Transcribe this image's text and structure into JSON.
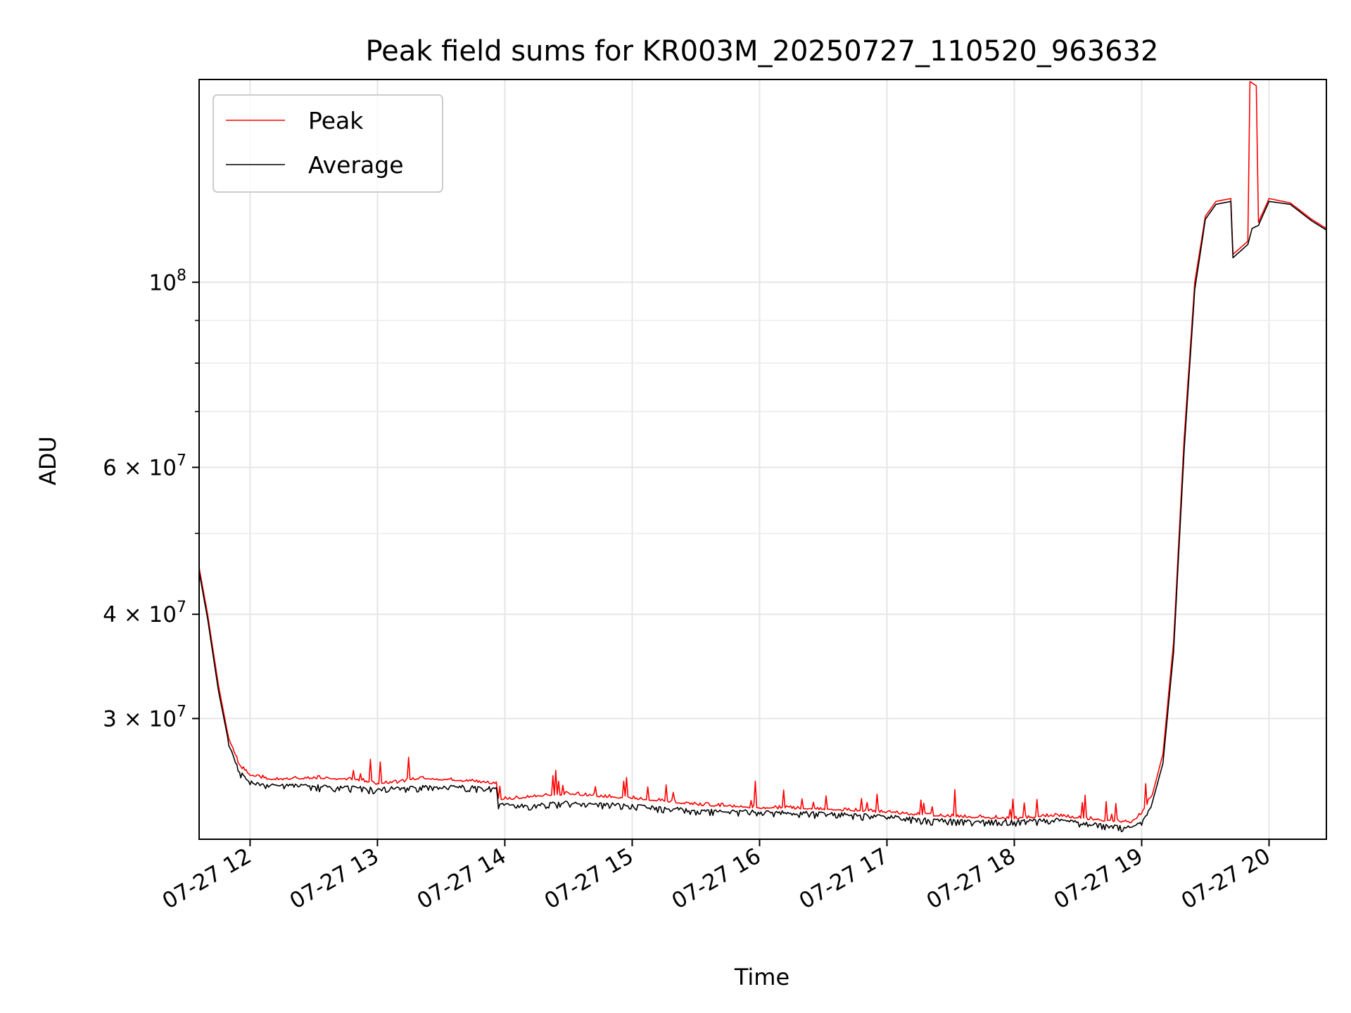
{
  "chart_data": {
    "type": "line",
    "title": "Peak field sums for KR003M_20250727_110520_963632",
    "xlabel": "Time",
    "ylabel": "ADU",
    "yscale": "log",
    "grid": true,
    "legend_position": "top-left",
    "xlim": [
      "2025-07-27 11:36",
      "2025-07-27 20:27"
    ],
    "ylim": [
      21500000,
      175000000
    ],
    "x_ticks": [
      {
        "value": "2025-07-27 12:00",
        "label": "07-27 12"
      },
      {
        "value": "2025-07-27 13:00",
        "label": "07-27 13"
      },
      {
        "value": "2025-07-27 14:00",
        "label": "07-27 14"
      },
      {
        "value": "2025-07-27 15:00",
        "label": "07-27 15"
      },
      {
        "value": "2025-07-27 16:00",
        "label": "07-27 16"
      },
      {
        "value": "2025-07-27 17:00",
        "label": "07-27 17"
      },
      {
        "value": "2025-07-27 18:00",
        "label": "07-27 18"
      },
      {
        "value": "2025-07-27 19:00",
        "label": "07-27 19"
      },
      {
        "value": "2025-07-27 20:00",
        "label": "07-27 20"
      }
    ],
    "y_ticks": [
      {
        "value": 30000000,
        "base": "3 × 10",
        "exp": "7"
      },
      {
        "value": 40000000,
        "base": "4 × 10",
        "exp": "7"
      },
      {
        "value": 60000000,
        "base": "6 × 10",
        "exp": "7"
      },
      {
        "value": 100000000,
        "base": "10",
        "exp": "8"
      }
    ],
    "y_minor_ticks": [
      50000000,
      70000000,
      80000000,
      90000000
    ],
    "series": [
      {
        "name": "Peak",
        "color": "#ff0000",
        "points": [
          [
            "2025-07-27 11:36",
            45500000
          ],
          [
            "2025-07-27 11:40",
            40000000
          ],
          [
            "2025-07-27 11:45",
            33000000
          ],
          [
            "2025-07-27 11:50",
            28300000
          ],
          [
            "2025-07-27 11:55",
            26300000
          ],
          [
            "2025-07-27 12:00",
            25600000
          ],
          [
            "2025-07-27 12:10",
            25300000
          ],
          [
            "2025-07-27 12:30",
            25400000
          ],
          [
            "2025-07-27 12:50",
            25300000
          ],
          [
            "2025-07-27 13:00",
            25000000
          ],
          [
            "2025-07-27 13:10",
            25100000
          ],
          [
            "2025-07-27 13:20",
            25400000
          ],
          [
            "2025-07-27 13:30",
            25300000
          ],
          [
            "2025-07-27 13:50",
            25100000
          ],
          [
            "2025-07-27 13:56",
            25000000
          ],
          [
            "2025-07-27 13:57",
            23900000
          ],
          [
            "2025-07-27 14:10",
            24100000
          ],
          [
            "2025-07-27 14:30",
            24300000
          ],
          [
            "2025-07-27 14:50",
            24100000
          ],
          [
            "2025-07-27 15:10",
            23900000
          ],
          [
            "2025-07-27 15:30",
            23600000
          ],
          [
            "2025-07-27 16:00",
            23400000
          ],
          [
            "2025-07-27 16:30",
            23300000
          ],
          [
            "2025-07-27 17:00",
            23100000
          ],
          [
            "2025-07-27 17:20",
            22900000
          ],
          [
            "2025-07-27 17:40",
            22800000
          ],
          [
            "2025-07-27 18:00",
            22700000
          ],
          [
            "2025-07-27 18:20",
            22900000
          ],
          [
            "2025-07-27 18:40",
            22600000
          ],
          [
            "2025-07-27 18:55",
            22500000
          ],
          [
            "2025-07-27 19:00",
            23000000
          ],
          [
            "2025-07-27 19:05",
            24300000
          ],
          [
            "2025-07-27 19:10",
            27200000
          ],
          [
            "2025-07-27 19:15",
            37000000
          ],
          [
            "2025-07-27 19:20",
            65000000
          ],
          [
            "2025-07-27 19:25",
            100000000
          ],
          [
            "2025-07-27 19:30",
            120000000
          ],
          [
            "2025-07-27 19:35",
            125000000
          ],
          [
            "2025-07-27 19:42",
            126000000
          ],
          [
            "2025-07-27 19:43",
            108000000
          ],
          [
            "2025-07-27 19:50",
            112000000
          ],
          [
            "2025-07-27 19:51",
            174000000
          ],
          [
            "2025-07-27 19:54",
            172000000
          ],
          [
            "2025-07-27 19:55",
            118000000
          ],
          [
            "2025-07-27 20:00",
            126000000
          ],
          [
            "2025-07-27 20:10",
            124500000
          ],
          [
            "2025-07-27 20:20",
            119000000
          ],
          [
            "2025-07-27 20:27",
            116000000
          ]
        ]
      },
      {
        "name": "Average",
        "color": "#000000",
        "points": [
          [
            "2025-07-27 11:36",
            45000000
          ],
          [
            "2025-07-27 11:40",
            39500000
          ],
          [
            "2025-07-27 11:45",
            32500000
          ],
          [
            "2025-07-27 11:50",
            28000000
          ],
          [
            "2025-07-27 11:55",
            26000000
          ],
          [
            "2025-07-27 12:00",
            25300000
          ],
          [
            "2025-07-27 12:10",
            25100000
          ],
          [
            "2025-07-27 12:30",
            25000000
          ],
          [
            "2025-07-27 12:50",
            24900000
          ],
          [
            "2025-07-27 13:00",
            24800000
          ],
          [
            "2025-07-27 13:10",
            24900000
          ],
          [
            "2025-07-27 13:30",
            25000000
          ],
          [
            "2025-07-27 13:56",
            24900000
          ],
          [
            "2025-07-27 13:57",
            23800000
          ],
          [
            "2025-07-27 14:10",
            23700000
          ],
          [
            "2025-07-27 14:30",
            23900000
          ],
          [
            "2025-07-27 14:50",
            23800000
          ],
          [
            "2025-07-27 15:10",
            23600000
          ],
          [
            "2025-07-27 15:30",
            23400000
          ],
          [
            "2025-07-27 16:00",
            23300000
          ],
          [
            "2025-07-27 16:30",
            23200000
          ],
          [
            "2025-07-27 17:00",
            23000000
          ],
          [
            "2025-07-27 17:20",
            22800000
          ],
          [
            "2025-07-27 17:40",
            22700000
          ],
          [
            "2025-07-27 18:00",
            22700000
          ],
          [
            "2025-07-27 18:20",
            22800000
          ],
          [
            "2025-07-27 18:40",
            22500000
          ],
          [
            "2025-07-27 18:55",
            22300000
          ],
          [
            "2025-07-27 19:00",
            22700000
          ],
          [
            "2025-07-27 19:05",
            23800000
          ],
          [
            "2025-07-27 19:10",
            26500000
          ],
          [
            "2025-07-27 19:15",
            36000000
          ],
          [
            "2025-07-27 19:20",
            63000000
          ],
          [
            "2025-07-27 19:25",
            98000000
          ],
          [
            "2025-07-27 19:30",
            119000000
          ],
          [
            "2025-07-27 19:35",
            124000000
          ],
          [
            "2025-07-27 19:42",
            125000000
          ],
          [
            "2025-07-27 19:43",
            107000000
          ],
          [
            "2025-07-27 19:50",
            111000000
          ],
          [
            "2025-07-27 19:52",
            116000000
          ],
          [
            "2025-07-27 19:55",
            117000000
          ],
          [
            "2025-07-27 20:00",
            125000000
          ],
          [
            "2025-07-27 20:10",
            124000000
          ],
          [
            "2025-07-27 20:20",
            118500000
          ],
          [
            "2025-07-27 20:27",
            115500000
          ]
        ]
      }
    ]
  }
}
